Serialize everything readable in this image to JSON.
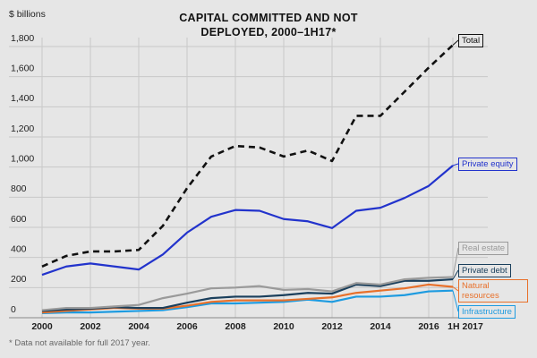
{
  "chart_data": {
    "type": "line",
    "title": "CAPITAL COMMITTED AND NOT DEPLOYED, 2000–1H17*",
    "y_label": "$ billions",
    "footnote": "* Data not available for full 2017 year.",
    "categories": [
      "2000",
      null,
      "2002",
      null,
      "2004",
      null,
      "2006",
      null,
      "2008",
      null,
      "2010",
      null,
      "2012",
      null,
      "2014",
      null,
      "2016",
      "1H 2017"
    ],
    "ylim": [
      0,
      1800
    ],
    "yticks": [
      0,
      200,
      400,
      600,
      800,
      {
        "value": 1000,
        "label": "1,000"
      },
      {
        "value": 1200,
        "label": "1,200"
      },
      {
        "value": 1400,
        "label": "1,400"
      },
      {
        "value": 1600,
        "label": "1,600"
      },
      {
        "value": 1800,
        "label": "1,800"
      }
    ],
    "grid": true,
    "series": [
      {
        "name": "Total",
        "color": "#111111",
        "dashed": true,
        "values": [
          340,
          410,
          440,
          440,
          450,
          610,
          860,
          1070,
          1140,
          1130,
          1070,
          1110,
          1040,
          1340,
          1340,
          1500,
          1660,
          1810
        ]
      },
      {
        "name": "Private equity",
        "color": "#2233cc",
        "values": [
          285,
          340,
          360,
          340,
          320,
          420,
          565,
          670,
          715,
          710,
          655,
          640,
          595,
          710,
          730,
          795,
          875,
          1010
        ]
      },
      {
        "name": "Real estate",
        "color": "#9a9a9a",
        "values": [
          50,
          65,
          65,
          75,
          85,
          130,
          160,
          195,
          200,
          210,
          185,
          190,
          175,
          230,
          220,
          255,
          265,
          270
        ]
      },
      {
        "name": "Private debt",
        "color": "#1a3f5c",
        "values": [
          45,
          55,
          60,
          70,
          65,
          65,
          100,
          130,
          140,
          140,
          150,
          165,
          160,
          220,
          210,
          245,
          245,
          255
        ]
      },
      {
        "name": "Natural resources",
        "color": "#e8702a",
        "values": [
          35,
          45,
          55,
          65,
          60,
          60,
          80,
          105,
          115,
          115,
          115,
          125,
          135,
          165,
          180,
          195,
          220,
          205
        ]
      },
      {
        "name": "Infrastructure",
        "color": "#1e9be0",
        "values": [
          30,
          35,
          35,
          40,
          45,
          50,
          70,
          95,
          95,
          100,
          105,
          120,
          105,
          140,
          140,
          150,
          175,
          180
        ]
      }
    ]
  }
}
